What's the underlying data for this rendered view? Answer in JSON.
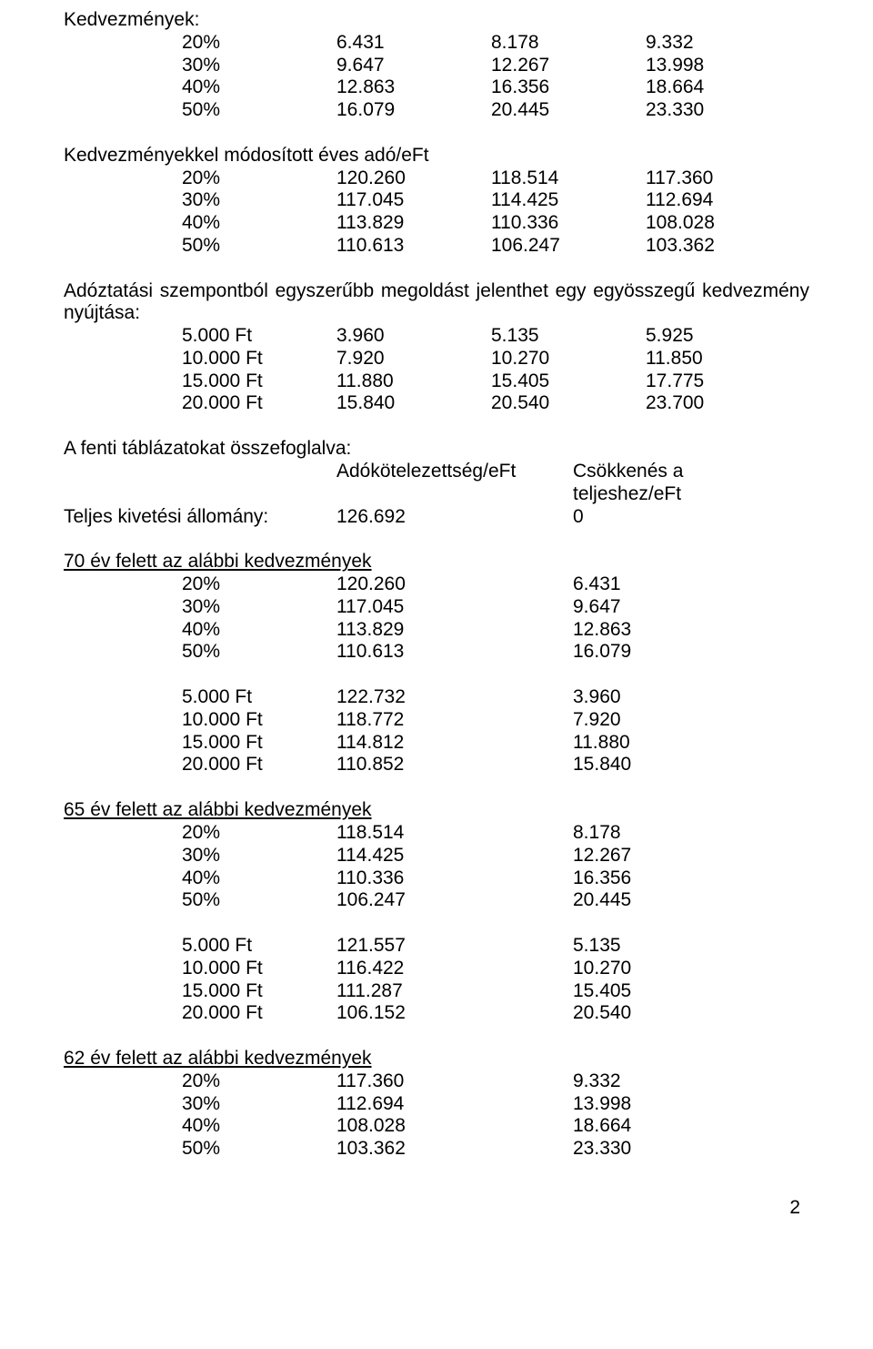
{
  "h_kedv": "Kedvezmények:",
  "t1": {
    "r": [
      [
        "20%",
        "6.431",
        "8.178",
        "9.332"
      ],
      [
        "30%",
        "9.647",
        "12.267",
        "13.998"
      ],
      [
        "40%",
        "12.863",
        "16.356",
        "18.664"
      ],
      [
        "50%",
        "16.079",
        "20.445",
        "23.330"
      ]
    ]
  },
  "h_mod": "Kedvezményekkel módosított éves adó/eFt",
  "t2": {
    "r": [
      [
        "20%",
        "120.260",
        "118.514",
        "117.360"
      ],
      [
        "30%",
        "117.045",
        "114.425",
        "112.694"
      ],
      [
        "40%",
        "113.829",
        "110.336",
        "108.028"
      ],
      [
        "50%",
        "110.613",
        "106.247",
        "103.362"
      ]
    ]
  },
  "h_adoz": "Adóztatási szempontból egyszerűbb megoldást jelenthet egy egyösszegű kedvezmény nyújtása:",
  "t3": {
    "r": [
      [
        "5.000 Ft",
        "3.960",
        "5.135",
        "5.925"
      ],
      [
        "10.000 Ft",
        "7.920",
        "10.270",
        "11.850"
      ],
      [
        "15.000 Ft",
        "11.880",
        "15.405",
        "17.775"
      ],
      [
        "20.000 Ft",
        "15.840",
        "20.540",
        "23.700"
      ]
    ]
  },
  "h_fenti": "A fenti táblázatokat összefoglalva:",
  "col_a": "Adókötelezettség/eFt",
  "col_b": "Csökkenés a teljeshez/eFt",
  "teljes_label": "Teljes kivetési állomány:",
  "teljes_v1": "126.692",
  "teljes_v2": "0",
  "h70": "70 év felett az alábbi kedvezmények",
  "t70a": {
    "r": [
      [
        "20%",
        "120.260",
        "6.431"
      ],
      [
        "30%",
        "117.045",
        "9.647"
      ],
      [
        "40%",
        "113.829",
        "12.863"
      ],
      [
        "50%",
        "110.613",
        "16.079"
      ]
    ]
  },
  "t70b": {
    "r": [
      [
        "5.000 Ft",
        "122.732",
        "3.960"
      ],
      [
        "10.000 Ft",
        "118.772",
        "7.920"
      ],
      [
        "15.000 Ft",
        "114.812",
        "11.880"
      ],
      [
        "20.000 Ft",
        "110.852",
        "15.840"
      ]
    ]
  },
  "h65": "65 év felett az alábbi kedvezmények",
  "t65a": {
    "r": [
      [
        "20%",
        "118.514",
        "8.178"
      ],
      [
        "30%",
        "114.425",
        "12.267"
      ],
      [
        "40%",
        "110.336",
        "16.356"
      ],
      [
        "50%",
        "106.247",
        "20.445"
      ]
    ]
  },
  "t65b": {
    "r": [
      [
        "5.000 Ft",
        "121.557",
        "5.135"
      ],
      [
        "10.000 Ft",
        "116.422",
        "10.270"
      ],
      [
        "15.000 Ft",
        "111.287",
        "15.405"
      ],
      [
        "20.000 Ft",
        "106.152",
        "20.540"
      ]
    ]
  },
  "h62": "62 év felett az alábbi kedvezmények",
  "t62a": {
    "r": [
      [
        "20%",
        "117.360",
        "9.332"
      ],
      [
        "30%",
        "112.694",
        "13.998"
      ],
      [
        "40%",
        "108.028",
        "18.664"
      ],
      [
        "50%",
        "103.362",
        "23.330"
      ]
    ]
  },
  "page": "2"
}
